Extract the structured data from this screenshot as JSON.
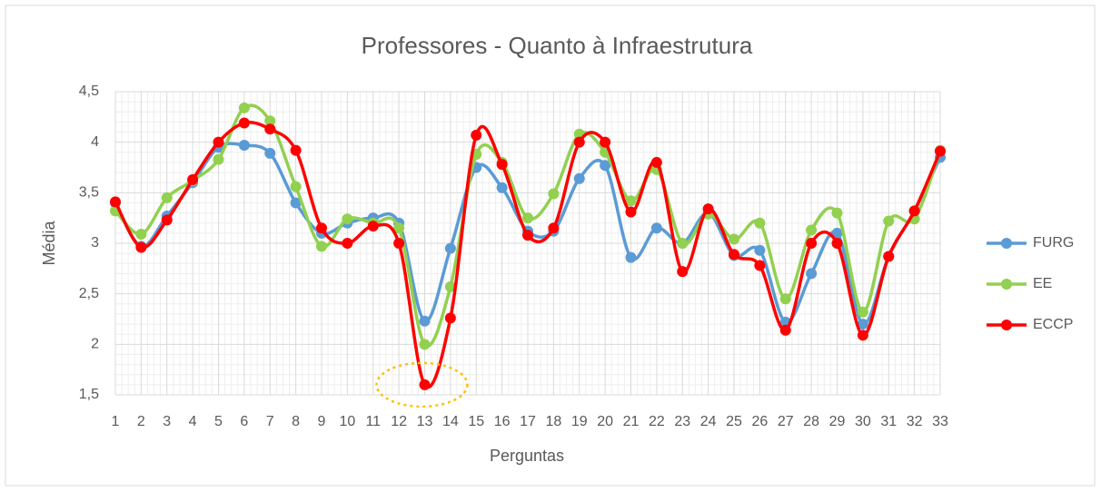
{
  "chart_data": {
    "type": "line",
    "title": "Professores - Quanto à Infraestrutura",
    "x_label": "Perguntas",
    "y_label": "Média",
    "categories": [
      "1",
      "2",
      "3",
      "4",
      "5",
      "6",
      "7",
      "8",
      "9",
      "10",
      "11",
      "12",
      "13",
      "14",
      "15",
      "16",
      "17",
      "18",
      "19",
      "20",
      "21",
      "22",
      "23",
      "24",
      "25",
      "26",
      "27",
      "28",
      "29",
      "30",
      "31",
      "32",
      "33"
    ],
    "series": [
      {
        "name": "FURG",
        "color": "#5b9bd5",
        "values": [
          3.4,
          2.97,
          3.27,
          3.6,
          3.95,
          3.97,
          3.89,
          3.4,
          3.1,
          3.2,
          3.25,
          3.2,
          2.23,
          2.95,
          3.75,
          3.55,
          3.12,
          3.12,
          3.64,
          3.77,
          2.86,
          3.15,
          3.0,
          3.3,
          2.88,
          2.93,
          2.22,
          2.7,
          3.1,
          2.2,
          2.87,
          3.32,
          3.85
        ]
      },
      {
        "name": "EE",
        "color": "#92d050",
        "values": [
          3.32,
          3.09,
          3.45,
          3.62,
          3.83,
          4.34,
          4.21,
          3.56,
          2.97,
          3.24,
          3.2,
          3.15,
          2.0,
          2.57,
          3.88,
          3.8,
          3.25,
          3.49,
          4.08,
          3.9,
          3.42,
          3.73,
          3.0,
          3.29,
          3.04,
          3.2,
          2.45,
          3.13,
          3.3,
          2.32,
          3.22,
          3.24,
          3.92
        ]
      },
      {
        "name": "ECCP",
        "color": "#ff0000",
        "values": [
          3.41,
          2.96,
          3.23,
          3.63,
          4.0,
          4.19,
          4.13,
          3.92,
          3.15,
          3.0,
          3.17,
          3.0,
          1.6,
          2.26,
          4.07,
          3.78,
          3.08,
          3.15,
          4.0,
          4.0,
          3.31,
          3.8,
          2.72,
          3.34,
          2.89,
          2.78,
          2.14,
          3.0,
          3.0,
          2.09,
          2.87,
          3.32,
          3.91
        ]
      }
    ],
    "ylim": [
      1.5,
      4.5
    ],
    "yticks": [
      {
        "value": 1.5,
        "label": "1,5"
      },
      2,
      {
        "value": 2.5,
        "label": "2,5"
      },
      3,
      {
        "value": 3.5,
        "label": "3,5"
      },
      4,
      {
        "value": 4.5,
        "label": "4,5"
      }
    ],
    "grid": true,
    "smooth": true,
    "legend": "right"
  }
}
